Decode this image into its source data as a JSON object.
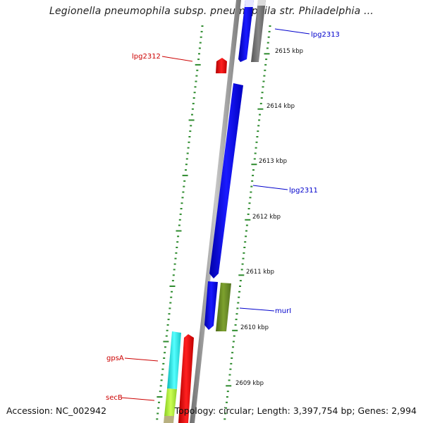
{
  "title": "Legionella pneumophila subsp. pneumophila str. Philadelphia ...",
  "footer": {
    "accession": "Accession: NC_002942",
    "topology": "Topology: circular; Length: 3,397,754 bp; Genes: 2,994"
  },
  "colors": {
    "forward_label": "#0000cc",
    "reverse_label": "#cc0000",
    "backbone": "#8a8a8a",
    "tick": "#2e8b2e",
    "blue_gene": "#0000ee",
    "red_gene": "#ee0000",
    "grey_gene": "#6e6e6e",
    "olive_gene": "#6b8e23",
    "cyan_gene": "#22dddd",
    "lime_gene": "#aaee33",
    "tan_gene": "#b8b080"
  },
  "position_scale": {
    "unit": "kbp",
    "labels": [
      "2615 kbp",
      "2614 kbp",
      "2613 kbp",
      "2612 kbp",
      "2611 kbp",
      "2610 kbp",
      "2609 kbp"
    ]
  },
  "genes": [
    {
      "label": "lpg2313",
      "strand": "forward"
    },
    {
      "label": "lpg2312",
      "strand": "reverse"
    },
    {
      "label": "lpg2311",
      "strand": "forward"
    },
    {
      "label": "murI",
      "strand": "forward"
    },
    {
      "label": "gpsA",
      "strand": "reverse"
    },
    {
      "label": "secB",
      "strand": "reverse"
    }
  ]
}
